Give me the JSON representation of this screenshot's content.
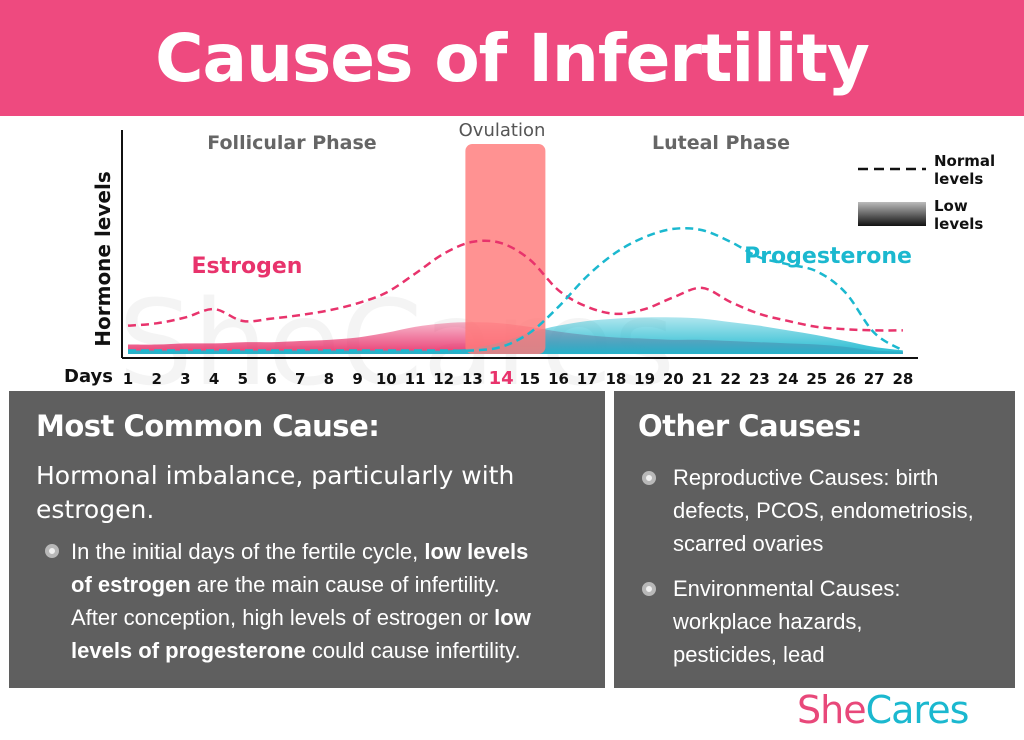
{
  "header": {
    "title": "Causes of Infertility"
  },
  "chart_data": {
    "type": "line",
    "ylabel": "Hormone levels",
    "xlabel": "Days",
    "x": [
      1,
      2,
      3,
      4,
      5,
      6,
      7,
      8,
      9,
      10,
      11,
      12,
      13,
      14,
      15,
      16,
      17,
      18,
      19,
      20,
      21,
      22,
      23,
      24,
      25,
      26,
      27,
      28
    ],
    "highlight_day": 14,
    "phases": [
      {
        "label": "Follicular Phase"
      },
      {
        "label": "Ovulation"
      },
      {
        "label": "Luteal Phase"
      }
    ],
    "series_labels": {
      "estrogen": "Estrogen",
      "progesterone": "Progesterone"
    },
    "legend": {
      "normal": {
        "line1": "Normal",
        "line2": "levels"
      },
      "low": {
        "line1": "Low",
        "line2": "levels"
      }
    },
    "series": [
      {
        "name": "Estrogen",
        "level": "normal",
        "values": [
          24,
          26,
          31,
          38,
          28,
          30,
          33,
          37,
          43,
          52,
          68,
          85,
          95,
          94,
          80,
          54,
          40,
          34,
          38,
          48,
          56,
          44,
          34,
          28,
          23,
          21,
          20,
          20
        ]
      },
      {
        "name": "Estrogen",
        "level": "low",
        "values": [
          8,
          8,
          9,
          9,
          10,
          10,
          11,
          12,
          14,
          18,
          23,
          26,
          27,
          26,
          23,
          19,
          16,
          14,
          13,
          12,
          12,
          11,
          10,
          9,
          8,
          6,
          3,
          2
        ]
      },
      {
        "name": "Progesterone",
        "level": "normal",
        "values": [
          3,
          3,
          3,
          3,
          3,
          3,
          3,
          3,
          3,
          3,
          3,
          3,
          3,
          6,
          18,
          40,
          66,
          86,
          99,
          106,
          105,
          95,
          82,
          76,
          70,
          52,
          18,
          3
        ]
      },
      {
        "name": "Progesterone",
        "level": "low",
        "values": [
          3,
          3,
          3,
          3,
          3,
          3,
          3,
          3,
          3,
          3,
          3,
          3,
          5,
          10,
          18,
          24,
          28,
          30,
          31,
          31,
          30,
          27,
          24,
          20,
          16,
          11,
          6,
          3
        ]
      }
    ],
    "colors": {
      "estrogen": "#e8336c",
      "progesterone": "#1bb8cf",
      "ovulation": "#ff7a7a"
    }
  },
  "watermark": "SheCares",
  "left_panel": {
    "heading": "Most Common Cause:",
    "subtitle": "Hormonal imbalance, particularly with estrogen.",
    "bullet_lines": [
      [
        {
          "t": "In the initial days of the fertile cycle, "
        },
        {
          "t": "low levels",
          "b": true
        }
      ],
      [
        {
          "t": "of estrogen",
          "b": true
        },
        {
          "t": " are the main cause of infertility."
        }
      ],
      [
        {
          "t": "After conception, high levels of estrogen or "
        },
        {
          "t": "low",
          "b": true
        }
      ],
      [
        {
          "t": "levels of progesterone",
          "b": true
        },
        {
          "t": " could cause infertility."
        }
      ]
    ]
  },
  "right_panel": {
    "heading": "Other Causes:",
    "bullets": [
      {
        "lines": [
          "Reproductive Causes: birth",
          "defects, PCOS, endometriosis,",
          "scarred ovaries"
        ]
      },
      {
        "lines": [
          "Environmental Causes:",
          "workplace hazards,",
          "pesticides, lead"
        ]
      }
    ]
  },
  "logo": {
    "she": "She",
    "cares": "Cares"
  }
}
